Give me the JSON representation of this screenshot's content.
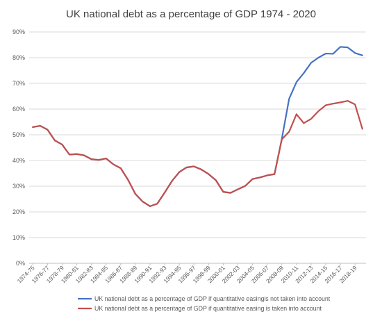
{
  "chart_data": {
    "type": "line",
    "title": "UK national debt as a percentage of GDP 1974 - 2020",
    "xlabel": "",
    "ylabel": "",
    "ylim": [
      0,
      90
    ],
    "yticks": [
      "0%",
      "10%",
      "20%",
      "30%",
      "40%",
      "50%",
      "60%",
      "70%",
      "80%",
      "90%"
    ],
    "grid": true,
    "legend_position": "bottom",
    "x": [
      "1974-75",
      "1975-76",
      "1976-77",
      "1977-78",
      "1978-79",
      "1979-80",
      "1980-81",
      "1981-82",
      "1982-83",
      "1983-84",
      "1984-85",
      "1985-86",
      "1986-87",
      "1987-88",
      "1988-89",
      "1989-90",
      "1990-91",
      "1991-92",
      "1992-93",
      "1993-94",
      "1994-95",
      "1995-96",
      "1996-97",
      "1997-98",
      "1998-99",
      "1999-00",
      "2000-01",
      "2001-02",
      "2002-03",
      "2003-04",
      "2004-05",
      "2005-06",
      "2006-07",
      "2007-08",
      "2008-09",
      "2009-10",
      "2010-11",
      "2011-12",
      "2012-13",
      "2013-14",
      "2014-15",
      "2015-16",
      "2016-17",
      "2017-18",
      "2018-19",
      "2019-20"
    ],
    "xtick_labels": [
      "1974-75",
      "1976-77",
      "1978-79",
      "1980-81",
      "1982-83",
      "1984-85",
      "1986-87",
      "1988-89",
      "1990-91",
      "1992-93",
      "1994-95",
      "1996-97",
      "1998-99",
      "2000-01",
      "2002-03",
      "2004-05",
      "2006-07",
      "2008-09",
      "2010-11",
      "2012-13",
      "2014-15",
      "2016-17",
      "2018-19"
    ],
    "series": [
      {
        "name": "UK national debt as a percentage of GDP if quantitative easingis not taken into account",
        "color": "#4472C4",
        "values": [
          53,
          53.5,
          52,
          47.8,
          46.2,
          42.3,
          42.5,
          42,
          40.5,
          40.2,
          40.8,
          38.5,
          37,
          32.5,
          27,
          24,
          22.2,
          23.2,
          27.5,
          32,
          35.5,
          37.3,
          37.7,
          36.5,
          34.7,
          32.3,
          27.8,
          27.4,
          28.8,
          30.1,
          32.8,
          33.4,
          34.2,
          34.7,
          48.4,
          64,
          70.5,
          74,
          78,
          80,
          81.6,
          81.5,
          84.2,
          84,
          81.8,
          80.9
        ]
      },
      {
        "name": "UK national debt as a percentage of GDP if quantitative easing is taken into account",
        "color": "#C0504D",
        "values": [
          53,
          53.5,
          52,
          47.8,
          46.2,
          42.3,
          42.5,
          42,
          40.5,
          40.2,
          40.8,
          38.5,
          37,
          32.5,
          27,
          24,
          22.2,
          23.2,
          27.5,
          32,
          35.5,
          37.3,
          37.7,
          36.5,
          34.7,
          32.3,
          27.8,
          27.4,
          28.8,
          30.1,
          32.8,
          33.4,
          34.2,
          34.7,
          48.2,
          51.2,
          58,
          54.5,
          56.2,
          59.2,
          61.5,
          62.1,
          62.6,
          63.2,
          61.8,
          52.3
        ]
      }
    ]
  }
}
